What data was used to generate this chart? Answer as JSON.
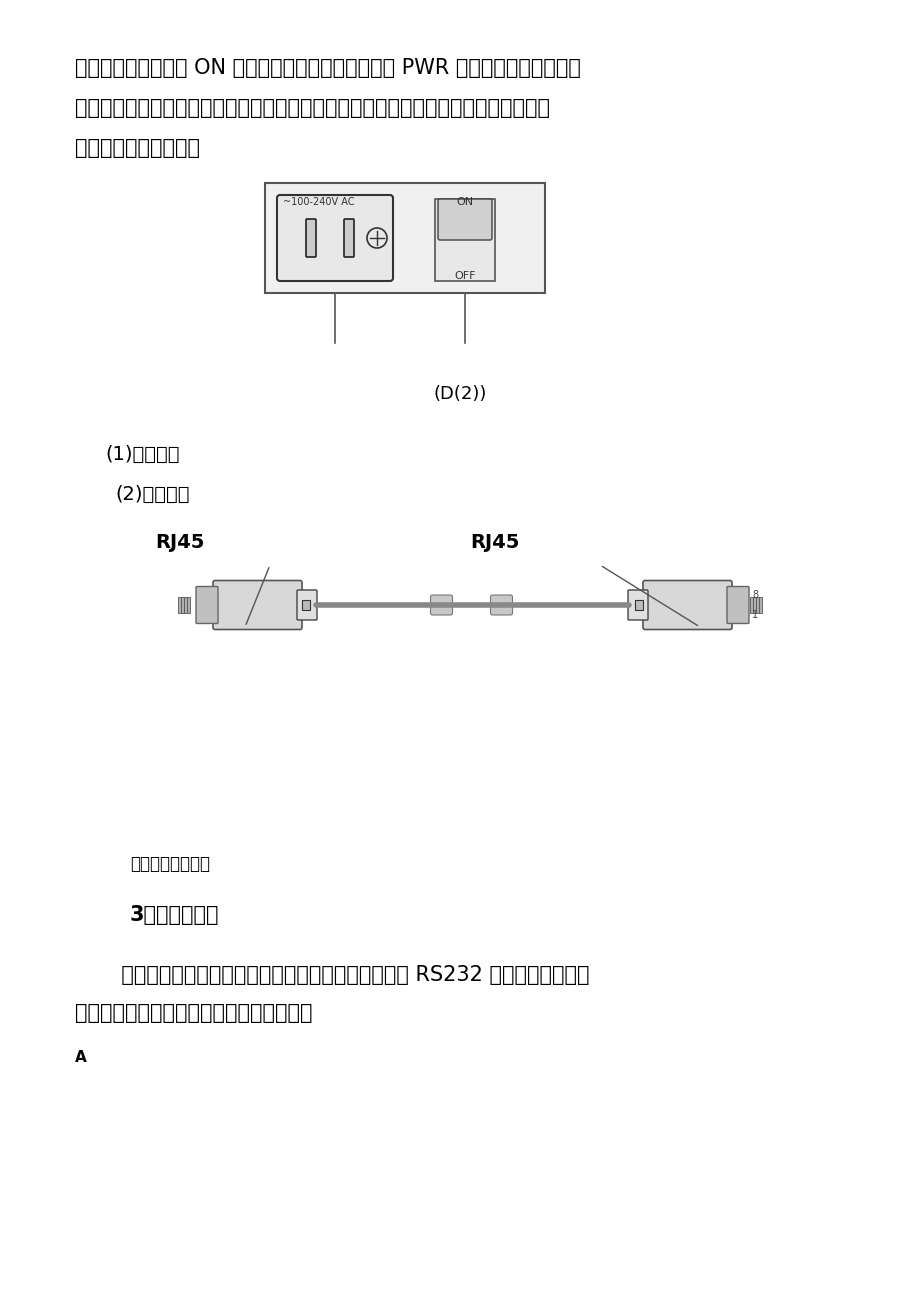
{
  "bg_color": "#ffffff",
  "text_color": "#000000",
  "para1": "把设备电源开关拨到 ON 位置。检查设备前面板电源灯 PWR 是否变亮，查看其他状",
  "para2": "态是否正常。连接以太网电缆，连接线应稳固、走向清楚、明确，粘贴永久性标签。以",
  "para3": "太网电缆如下图所示。",
  "label_d2": "(D(2))",
  "label_1": "(1)交流输入",
  "label_2": "(2)电源开关",
  "rj45_left": "RJ45",
  "rj45_right": "RJ45",
  "ethernet_caption": "以太网电缆示意图",
  "section_title": "3、启动与配置",
  "para4_line1": "       关闭设备、电脑的电源，通过配置电缆将配置终端的 RS232 串口与设备的配置",
  "para4_line2": "口相连。配置电缆及连接方式如下图所示。",
  "label_a": "A"
}
